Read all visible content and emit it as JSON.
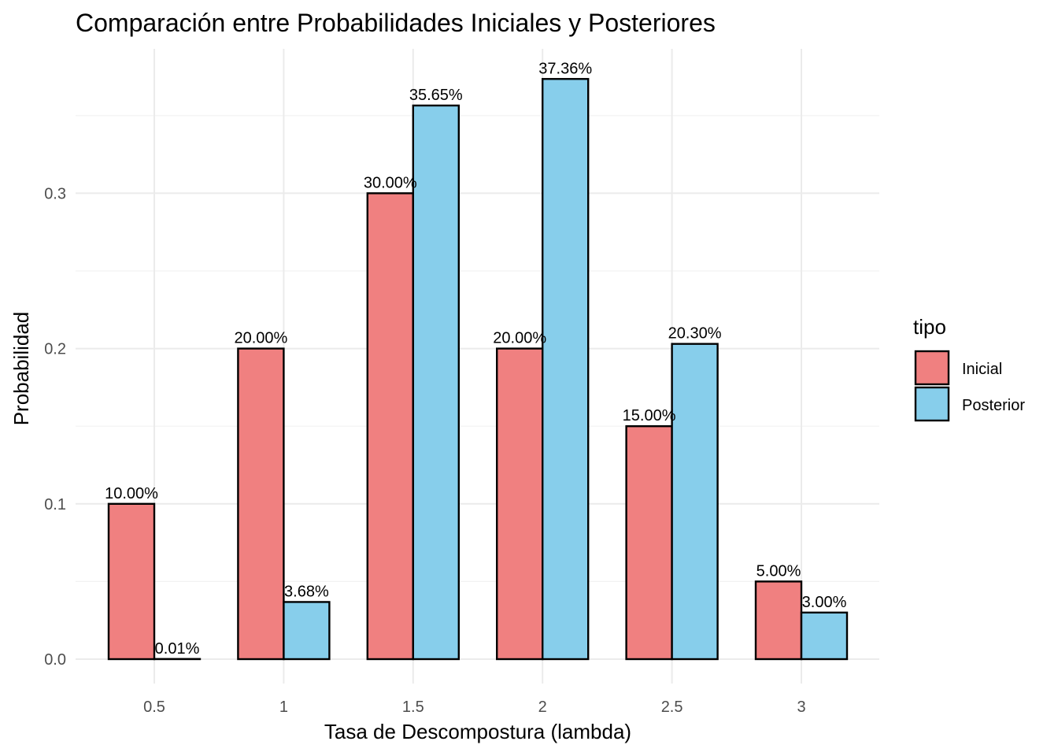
{
  "chart_data": {
    "type": "bar",
    "title": "Comparación entre Probabilidades Iniciales y Posteriores",
    "xlabel": "Tasa de Descompostura (lambda)",
    "ylabel": "Probabilidad",
    "categories": [
      "0.5",
      "1",
      "1.5",
      "2",
      "2.5",
      "3"
    ],
    "series": [
      {
        "name": "Inicial",
        "color": "#F08080",
        "values": [
          0.1,
          0.2,
          0.3,
          0.2,
          0.15,
          0.05
        ],
        "labels": [
          "10.00%",
          "20.00%",
          "30.00%",
          "20.00%",
          "15.00%",
          "5.00%"
        ]
      },
      {
        "name": "Posterior",
        "color": "#87CEEB",
        "values": [
          0.0001,
          0.0368,
          0.3565,
          0.3736,
          0.203,
          0.03
        ],
        "labels": [
          "0.01%",
          "3.68%",
          "35.65%",
          "37.36%",
          "20.30%",
          "3.00%"
        ]
      }
    ],
    "y_ticks": [
      "0.0",
      "0.1",
      "0.2",
      "0.3"
    ],
    "ylim": [
      0,
      0.3736
    ],
    "grid": true,
    "legend": {
      "title": "tipo",
      "position": "right"
    }
  }
}
